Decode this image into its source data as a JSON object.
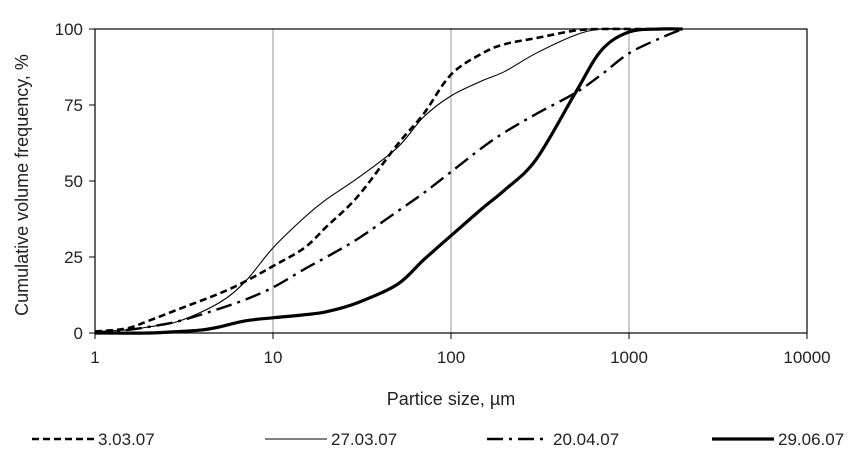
{
  "chart_data": {
    "type": "line",
    "title": "",
    "xlabel": "Partice size, µm",
    "ylabel": "Cumulative volume frequency, %",
    "x_scale": "log",
    "xlim": [
      1,
      10000
    ],
    "ylim": [
      0,
      100
    ],
    "x_ticks": [
      1,
      10,
      100,
      1000,
      10000
    ],
    "x_tick_labels": [
      "1",
      "10",
      "100",
      "1000",
      "10000"
    ],
    "y_ticks": [
      0,
      25,
      50,
      75,
      100
    ],
    "y_tick_labels": [
      "0",
      "25",
      "50",
      "75",
      "100"
    ],
    "grid": "vertical lines at x = 10, 100, 1000",
    "legend_position": "bottom",
    "series": [
      {
        "name": "3.03.07",
        "line_style": "dashed",
        "color": "#000000",
        "x": [
          1,
          1.5,
          2,
          3,
          5,
          7,
          10,
          15,
          20,
          30,
          50,
          70,
          100,
          150,
          200,
          300,
          500,
          700,
          1000,
          2000
        ],
        "y": [
          0.5,
          1.5,
          4,
          8,
          13,
          17,
          22,
          28,
          35,
          45,
          62,
          72,
          85,
          92,
          95,
          97,
          99.5,
          100,
          100,
          100
        ]
      },
      {
        "name": "27.03.07",
        "line_style": "thin-solid",
        "color": "#000000",
        "x": [
          1,
          1.5,
          2,
          3,
          5,
          7,
          10,
          15,
          20,
          30,
          50,
          70,
          100,
          150,
          200,
          300,
          500,
          700,
          1000,
          2000
        ],
        "y": [
          0.5,
          1,
          2,
          4,
          10,
          17,
          28,
          38,
          44,
          51,
          61,
          71,
          78,
          83,
          86,
          92,
          98,
          100,
          100,
          100
        ]
      },
      {
        "name": "20.04.07",
        "line_style": "dash-dot",
        "color": "#000000",
        "x": [
          1,
          1.5,
          2,
          3,
          5,
          7,
          10,
          15,
          20,
          30,
          50,
          70,
          100,
          150,
          200,
          300,
          500,
          700,
          1000,
          1500,
          2000
        ],
        "y": [
          0,
          1,
          2,
          4,
          8,
          11,
          15,
          21,
          25,
          31,
          40,
          46,
          53,
          61,
          66,
          72,
          79,
          85,
          92,
          97,
          100
        ]
      },
      {
        "name": "29.06.07",
        "line_style": "thick-solid",
        "color": "#000000",
        "x": [
          1,
          2,
          3,
          4,
          5,
          7,
          10,
          15,
          20,
          30,
          50,
          70,
          100,
          150,
          200,
          300,
          500,
          700,
          1000,
          1500,
          2000
        ],
        "y": [
          0,
          0,
          0.5,
          1,
          2,
          4,
          5,
          6,
          7,
          10,
          16,
          24,
          32,
          41,
          47,
          57,
          79,
          93,
          99,
          100,
          100
        ]
      }
    ]
  }
}
